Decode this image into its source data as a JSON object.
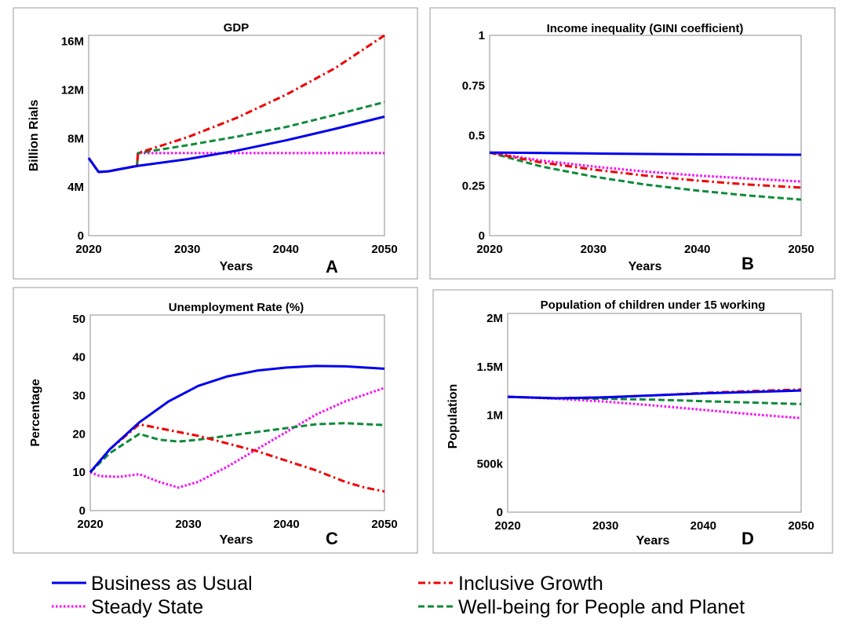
{
  "colors": {
    "Business as Usual": "#0000ee",
    "Inclusive Growth": "#ee0000",
    "Steady State": "#ff00ff",
    "Well-being for People and Planet": "#0f8a3c"
  },
  "legend": {
    "items": [
      {
        "name": "Business as Usual",
        "color": "#0000ee",
        "dash": "solid"
      },
      {
        "name": "Inclusive Growth",
        "color": "#ee0000",
        "dash": "dashdot"
      },
      {
        "name": "Steady State",
        "color": "#ff00ff",
        "dash": "dotted"
      },
      {
        "name": "Well-being for People and Planet",
        "color": "#0f8a3c",
        "dash": "dashed"
      }
    ]
  },
  "chart_data": [
    {
      "type": "line",
      "letter": "A",
      "title": "GDP",
      "xlabel": "Years",
      "ylabel": "Billion Rials",
      "xlim": [
        2020,
        2050
      ],
      "ylim": [
        0,
        16500000
      ],
      "xticks": [
        2020,
        2030,
        2040,
        2050
      ],
      "xtick_labels": [
        "2020",
        "2030",
        "2040",
        "2050"
      ],
      "yticks": [
        0,
        4000000,
        8000000,
        12000000,
        16000000
      ],
      "ytick_labels": [
        "0",
        "4M",
        "8M",
        "12M",
        "16M"
      ],
      "grid": false,
      "series": [
        {
          "name": "Business as Usual",
          "x": [
            2020,
            2021,
            2022,
            2025,
            2030,
            2035,
            2040,
            2045,
            2050
          ],
          "values": [
            6400000,
            5250000,
            5300000,
            5750000,
            6300000,
            7000000,
            7850000,
            8800000,
            9800000
          ]
        },
        {
          "name": "Inclusive Growth",
          "x": [
            2020,
            2021,
            2022,
            2024.9,
            2025,
            2030,
            2035,
            2040,
            2045,
            2050
          ],
          "values": [
            6400000,
            5250000,
            5300000,
            5750000,
            6800000,
            8100000,
            9700000,
            11600000,
            13800000,
            16500000
          ]
        },
        {
          "name": "Steady State",
          "x": [
            2020,
            2021,
            2022,
            2024.9,
            2025,
            2050
          ],
          "values": [
            6400000,
            5250000,
            5300000,
            5750000,
            6800000,
            6800000
          ]
        },
        {
          "name": "Well-being for People and Planet",
          "x": [
            2020,
            2021,
            2022,
            2024.9,
            2025,
            2030,
            2035,
            2040,
            2045,
            2050
          ],
          "values": [
            6400000,
            5250000,
            5300000,
            5750000,
            6800000,
            7450000,
            8150000,
            8950000,
            9950000,
            11000000
          ]
        }
      ]
    },
    {
      "type": "line",
      "letter": "B",
      "title": "Income inequality (GINI coefficient)",
      "xlabel": "Years",
      "ylabel": "",
      "xlim": [
        2020,
        2050
      ],
      "ylim": [
        0,
        1
      ],
      "xticks": [
        2020,
        2030,
        2040,
        2050
      ],
      "xtick_labels": [
        "2020",
        "2030",
        "2040",
        "2050"
      ],
      "yticks": [
        0,
        0.25,
        0.5,
        0.75,
        1
      ],
      "ytick_labels": [
        "0",
        "0.25",
        "0.5",
        "0.75",
        "1"
      ],
      "grid": false,
      "series": [
        {
          "name": "Business as Usual",
          "x": [
            2020,
            2025,
            2030,
            2035,
            2040,
            2045,
            2050
          ],
          "values": [
            0.415,
            0.413,
            0.41,
            0.408,
            0.406,
            0.405,
            0.404
          ]
        },
        {
          "name": "Inclusive Growth",
          "x": [
            2020,
            2025,
            2030,
            2035,
            2040,
            2045,
            2050
          ],
          "values": [
            0.415,
            0.365,
            0.33,
            0.3,
            0.275,
            0.255,
            0.24
          ]
        },
        {
          "name": "Steady State",
          "x": [
            2020,
            2025,
            2030,
            2035,
            2040,
            2045,
            2050
          ],
          "values": [
            0.415,
            0.375,
            0.345,
            0.32,
            0.3,
            0.285,
            0.27
          ]
        },
        {
          "name": "Well-being for People and Planet",
          "x": [
            2020,
            2025,
            2030,
            2035,
            2040,
            2045,
            2050
          ],
          "values": [
            0.415,
            0.345,
            0.295,
            0.255,
            0.225,
            0.2,
            0.18
          ]
        }
      ]
    },
    {
      "type": "line",
      "letter": "C",
      "title": "Unemployment Rate (%)",
      "xlabel": "Years",
      "ylabel": "Percentage",
      "xlim": [
        2020,
        2050
      ],
      "ylim": [
        0,
        51
      ],
      "xticks": [
        2020,
        2030,
        2040,
        2050
      ],
      "xtick_labels": [
        "2020",
        "2030",
        "2040",
        "2050"
      ],
      "yticks": [
        0,
        10,
        20,
        30,
        40,
        50
      ],
      "ytick_labels": [
        "0",
        "10",
        "20",
        "30",
        "40",
        "50"
      ],
      "grid": false,
      "series": [
        {
          "name": "Business as Usual",
          "x": [
            2020,
            2022,
            2025,
            2028,
            2031,
            2034,
            2037,
            2040,
            2043,
            2046,
            2050
          ],
          "values": [
            10,
            16,
            23,
            28.5,
            32.5,
            35,
            36.5,
            37.3,
            37.7,
            37.6,
            37
          ]
        },
        {
          "name": "Inclusive Growth",
          "x": [
            2020,
            2022,
            2025,
            2028,
            2031,
            2034,
            2037,
            2040,
            2043,
            2046,
            2048,
            2050
          ],
          "values": [
            10,
            16,
            22.5,
            21,
            19.5,
            17.5,
            15.5,
            13,
            10.5,
            7.5,
            6,
            5
          ]
        },
        {
          "name": "Steady State",
          "x": [
            2020,
            2021,
            2023,
            2025,
            2027,
            2029,
            2031,
            2034,
            2037,
            2040,
            2043,
            2046,
            2050
          ],
          "values": [
            10,
            9,
            8.8,
            9.5,
            7.5,
            6,
            7.5,
            11.5,
            16,
            20.5,
            25,
            28.5,
            32
          ]
        },
        {
          "name": "Well-being for People and Planet",
          "x": [
            2020,
            2022,
            2025,
            2027,
            2029,
            2031,
            2034,
            2037,
            2040,
            2043,
            2046,
            2050
          ],
          "values": [
            10,
            15,
            20,
            18.5,
            18,
            18.5,
            19.5,
            20.5,
            21.5,
            22.5,
            22.8,
            22.3
          ]
        }
      ]
    },
    {
      "type": "line",
      "letter": "D",
      "title": "Population of children under 15 working",
      "xlabel": "Years",
      "ylabel": "Population",
      "xlim": [
        2020,
        2050
      ],
      "ylim": [
        0,
        2050000
      ],
      "xticks": [
        2020,
        2030,
        2040,
        2050
      ],
      "xtick_labels": [
        "2020",
        "2030",
        "2040",
        "2050"
      ],
      "yticks": [
        0,
        500000,
        1000000,
        1500000,
        2000000
      ],
      "ytick_labels": [
        "0",
        "500k",
        "1M",
        "1.5M",
        "2M"
      ],
      "grid": false,
      "series": [
        {
          "name": "Business as Usual",
          "x": [
            2020,
            2025,
            2030,
            2035,
            2040,
            2045,
            2050
          ],
          "values": [
            1190000,
            1175000,
            1185000,
            1205000,
            1225000,
            1240000,
            1255000
          ]
        },
        {
          "name": "Inclusive Growth",
          "x": [
            2020,
            2025,
            2030,
            2035,
            2040,
            2045,
            2050
          ],
          "values": [
            1190000,
            1175000,
            1185000,
            1205000,
            1230000,
            1250000,
            1265000
          ]
        },
        {
          "name": "Steady State",
          "x": [
            2020,
            2025,
            2030,
            2035,
            2040,
            2045,
            2050
          ],
          "values": [
            1190000,
            1170000,
            1140000,
            1100000,
            1055000,
            1010000,
            970000
          ]
        },
        {
          "name": "Well-being for People and Planet",
          "x": [
            2020,
            2025,
            2030,
            2035,
            2040,
            2045,
            2050
          ],
          "values": [
            1190000,
            1175000,
            1170000,
            1160000,
            1145000,
            1130000,
            1115000
          ]
        }
      ]
    }
  ]
}
